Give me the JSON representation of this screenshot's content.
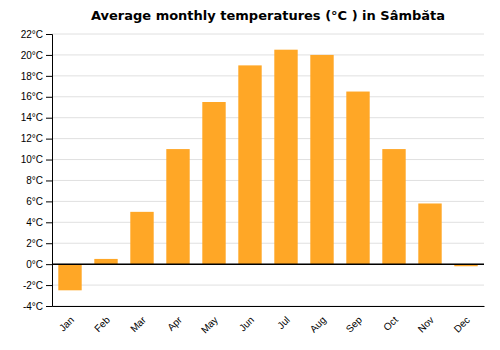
{
  "chart_data": {
    "type": "bar",
    "title": "Average monthly temperatures (°C ) in Sâmbăta",
    "categories": [
      "Jan",
      "Feb",
      "Mar",
      "Apr",
      "May",
      "Jun",
      "Jul",
      "Aug",
      "Sep",
      "Oct",
      "Nov",
      "Dec"
    ],
    "values": [
      -2.5,
      0.5,
      5.0,
      11.0,
      15.5,
      19.0,
      20.5,
      20.0,
      16.5,
      11.0,
      5.8,
      -0.2
    ],
    "color": "#FFA726",
    "ylim": [
      -4,
      22
    ],
    "yticks": [
      {
        "value": -4,
        "label": "-4°C"
      },
      {
        "value": -2,
        "label": "-2°C"
      },
      {
        "value": 0,
        "label": "0°C"
      },
      {
        "value": 2,
        "label": "2°C"
      },
      {
        "value": 4,
        "label": "4°C"
      },
      {
        "value": 6,
        "label": "6°C"
      },
      {
        "value": 8,
        "label": "8°C"
      },
      {
        "value": 10,
        "label": "10°C"
      },
      {
        "value": 12,
        "label": "12°C"
      },
      {
        "value": 14,
        "label": "14°C"
      },
      {
        "value": 16,
        "label": "16°C"
      },
      {
        "value": 18,
        "label": "18°C"
      },
      {
        "value": 20,
        "label": "20°C"
      },
      {
        "value": 22,
        "label": "22°C"
      }
    ],
    "grid": true
  }
}
